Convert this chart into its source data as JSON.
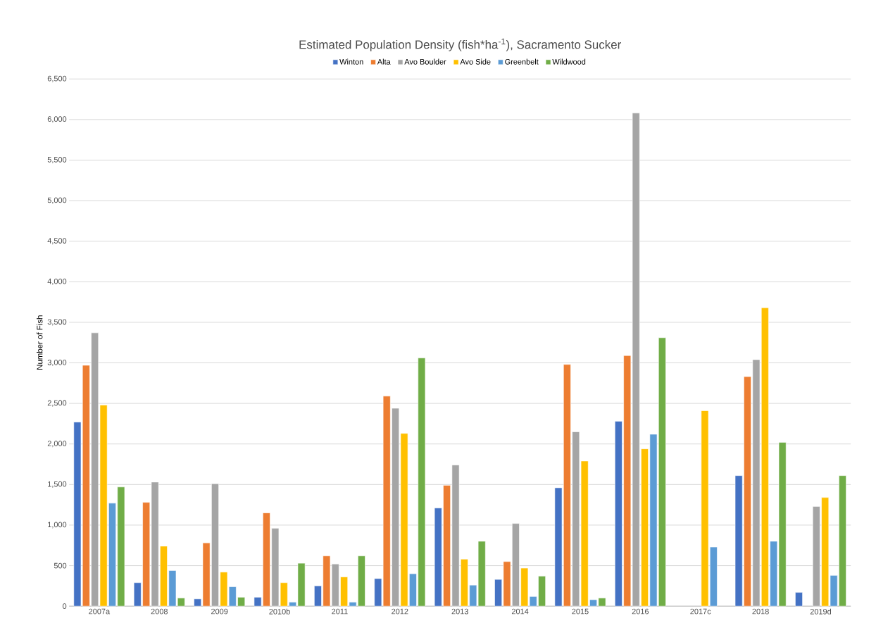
{
  "chart_data": {
    "type": "bar",
    "title": "Estimated Population Density (fish*ha$^{-1}$), Sacramento Sucker",
    "ylabel": "Number of Fish",
    "categories": [
      "2007a",
      "2008",
      "2009",
      "2010b",
      "2011",
      "2012",
      "2013",
      "2014",
      "2015",
      "2016",
      "2017c",
      "2018",
      "2019d"
    ],
    "series": [
      {
        "name": "Winton",
        "color": "#4472c4",
        "values": [
          2270,
          290,
          90,
          110,
          250,
          340,
          1210,
          330,
          1460,
          2280,
          null,
          1610,
          170
        ]
      },
      {
        "name": "Alta",
        "color": "#ed7d31",
        "values": [
          2970,
          1280,
          780,
          1150,
          620,
          2590,
          1490,
          550,
          2980,
          3090,
          null,
          2830,
          null
        ]
      },
      {
        "name": "Avo Boulder",
        "color": "#a5a5a5",
        "values": [
          3370,
          1530,
          1510,
          960,
          520,
          2440,
          1740,
          1020,
          2150,
          6080,
          null,
          3040,
          1230
        ]
      },
      {
        "name": "Avo Side",
        "color": "#ffc000",
        "values": [
          2480,
          740,
          420,
          290,
          360,
          2130,
          580,
          470,
          1790,
          1940,
          2410,
          3680,
          1340
        ]
      },
      {
        "name": "Greenbelt",
        "color": "#5b9bd5",
        "values": [
          1270,
          440,
          240,
          50,
          50,
          400,
          260,
          120,
          80,
          2120,
          730,
          800,
          380
        ]
      },
      {
        "name": "Wildwood",
        "color": "#70ad47",
        "values": [
          1470,
          100,
          110,
          530,
          620,
          3060,
          800,
          370,
          100,
          3310,
          null,
          2020,
          1610
        ]
      }
    ],
    "ylim": [
      0,
      6500
    ],
    "yticks": [
      {
        "value": 0,
        "label": "0"
      },
      {
        "value": 500,
        "label": "500"
      },
      {
        "value": 1000,
        "label": "1,000"
      },
      {
        "value": 1500,
        "label": "1,500"
      },
      {
        "value": 2000,
        "label": "2,000"
      },
      {
        "value": 2500,
        "label": "2,500"
      },
      {
        "value": 3000,
        "label": "3,000"
      },
      {
        "value": 3500,
        "label": "3,500"
      },
      {
        "value": 4000,
        "label": "4,000"
      },
      {
        "value": 4500,
        "label": "4,500"
      },
      {
        "value": 5000,
        "label": "5,000"
      },
      {
        "value": 5500,
        "label": "5,500"
      },
      {
        "value": 6000,
        "label": "6,000"
      },
      {
        "value": 6500,
        "label": "6,500"
      }
    ],
    "grid": "y",
    "legend": "top"
  }
}
